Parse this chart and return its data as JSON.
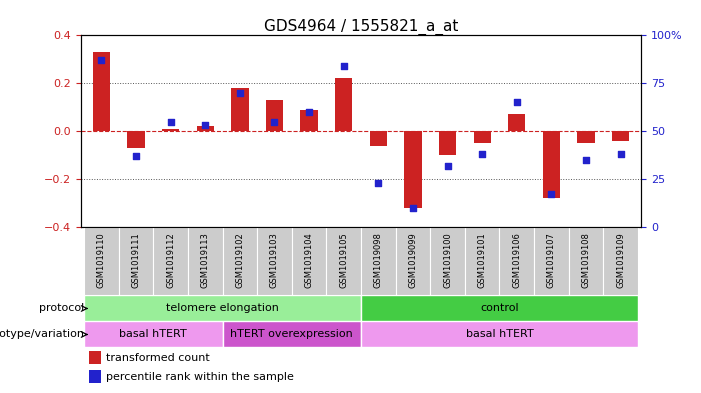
{
  "title": "GDS4964 / 1555821_a_at",
  "samples": [
    "GSM1019110",
    "GSM1019111",
    "GSM1019112",
    "GSM1019113",
    "GSM1019102",
    "GSM1019103",
    "GSM1019104",
    "GSM1019105",
    "GSM1019098",
    "GSM1019099",
    "GSM1019100",
    "GSM1019101",
    "GSM1019106",
    "GSM1019107",
    "GSM1019108",
    "GSM1019109"
  ],
  "bar_values": [
    0.33,
    -0.07,
    0.01,
    0.02,
    0.18,
    0.13,
    0.09,
    0.22,
    -0.06,
    -0.32,
    -0.1,
    -0.05,
    0.07,
    -0.28,
    -0.05,
    -0.04
  ],
  "dot_values": [
    87,
    37,
    55,
    53,
    70,
    55,
    60,
    84,
    23,
    10,
    32,
    38,
    65,
    17,
    35,
    38
  ],
  "bar_color": "#cc2222",
  "dot_color": "#2222cc",
  "ylim_left": [
    -0.4,
    0.4
  ],
  "ylim_right": [
    0,
    100
  ],
  "yticks_left": [
    -0.4,
    -0.2,
    0.0,
    0.2,
    0.4
  ],
  "yticks_right": [
    0,
    25,
    50,
    75,
    100
  ],
  "ytick_labels_right": [
    "0",
    "25",
    "50",
    "75",
    "100%"
  ],
  "hline_color": "#cc2222",
  "dotted_color": "#555555",
  "protocol_groups": [
    {
      "label": "telomere elongation",
      "start": 0,
      "end": 7,
      "color": "#99ee99"
    },
    {
      "label": "control",
      "start": 8,
      "end": 15,
      "color": "#44cc44"
    }
  ],
  "genotype_groups": [
    {
      "label": "basal hTERT",
      "start": 0,
      "end": 3,
      "color": "#ee99ee"
    },
    {
      "label": "hTERT overexpression",
      "start": 4,
      "end": 7,
      "color": "#cc55cc"
    },
    {
      "label": "basal hTERT",
      "start": 8,
      "end": 15,
      "color": "#ee99ee"
    }
  ],
  "protocol_label": "protocol",
  "genotype_label": "genotype/variation",
  "legend_bar_label": "transformed count",
  "legend_dot_label": "percentile rank within the sample",
  "tick_bg_color": "#cccccc",
  "bar_width": 0.5,
  "title_fontsize": 11,
  "axis_fontsize": 8,
  "label_fontsize": 8,
  "sample_fontsize": 6
}
